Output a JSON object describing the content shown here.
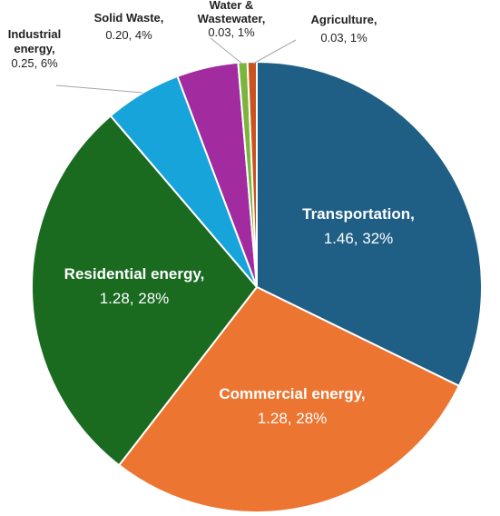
{
  "chart_data": {
    "type": "pie",
    "title": "",
    "labels": [
      "Transportation,",
      "Commercial energy,",
      "Residential energy,",
      "Industrial energy,",
      "Solid Waste,",
      "Water & Wastewater,",
      "Agriculture,"
    ],
    "values": [
      1.46,
      1.28,
      1.28,
      0.25,
      0.2,
      0.03,
      0.03
    ],
    "percentages": [
      "32%",
      "28%",
      "28%",
      "6%",
      "4%",
      "1%",
      "1%"
    ],
    "value_labels": [
      "1.46, 32%",
      "1.28, 28%",
      "1.28, 28%",
      "0.25, 6%",
      "0.20, 4%",
      "0.03, 1%",
      "0.03, 1%"
    ],
    "colors": [
      "#1F5F86",
      "#ED7532",
      "#1A6A20",
      "#16A4DA",
      "#A22BA0",
      "#79B63B",
      "#C9521F"
    ],
    "start_angle_deg": 0,
    "direction": "clockwise",
    "legend": "none"
  }
}
